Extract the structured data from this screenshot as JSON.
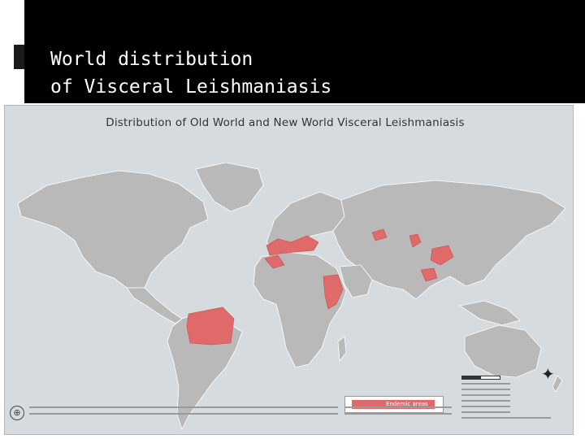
{
  "slide": {
    "title": "World distribution\nof Visceral Leishmaniasis"
  },
  "map": {
    "title": "Distribution of Old World and New World Visceral Leishmaniasis",
    "legend_label": "Endemic areas",
    "colors": {
      "background": "#d6dbe0",
      "land": "#b9b9b9",
      "endemic": "#e06a6a",
      "slide_panel": "#000000"
    },
    "icons": [
      "who-logo-icon",
      "compass-rose-icon"
    ]
  }
}
